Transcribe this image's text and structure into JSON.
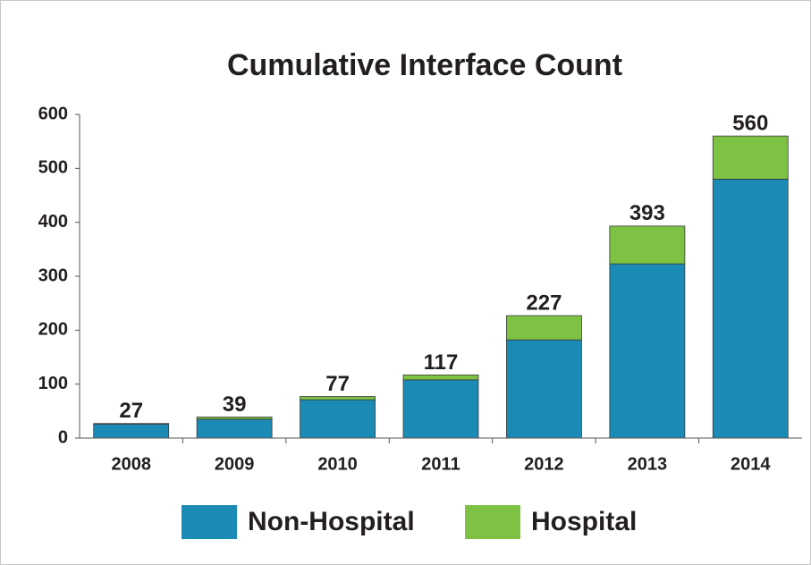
{
  "chart_data": {
    "type": "stacked_bar",
    "title": "Cumulative Interface Count",
    "categories": [
      "2008",
      "2009",
      "2010",
      "2011",
      "2012",
      "2013",
      "2014"
    ],
    "series": [
      {
        "name": "Non-Hospital",
        "color": "#1b8ab5",
        "values": [
          26,
          35,
          71,
          108,
          182,
          323,
          480
        ]
      },
      {
        "name": "Hospital",
        "color": "#7dc243",
        "values": [
          1,
          4,
          6,
          9,
          45,
          70,
          80
        ]
      }
    ],
    "totals": [
      27,
      39,
      77,
      117,
      227,
      393,
      560
    ],
    "ylim": [
      0,
      600
    ],
    "yticks": [
      0,
      100,
      200,
      300,
      400,
      500,
      600
    ],
    "grid": false,
    "legend": "bottom"
  }
}
